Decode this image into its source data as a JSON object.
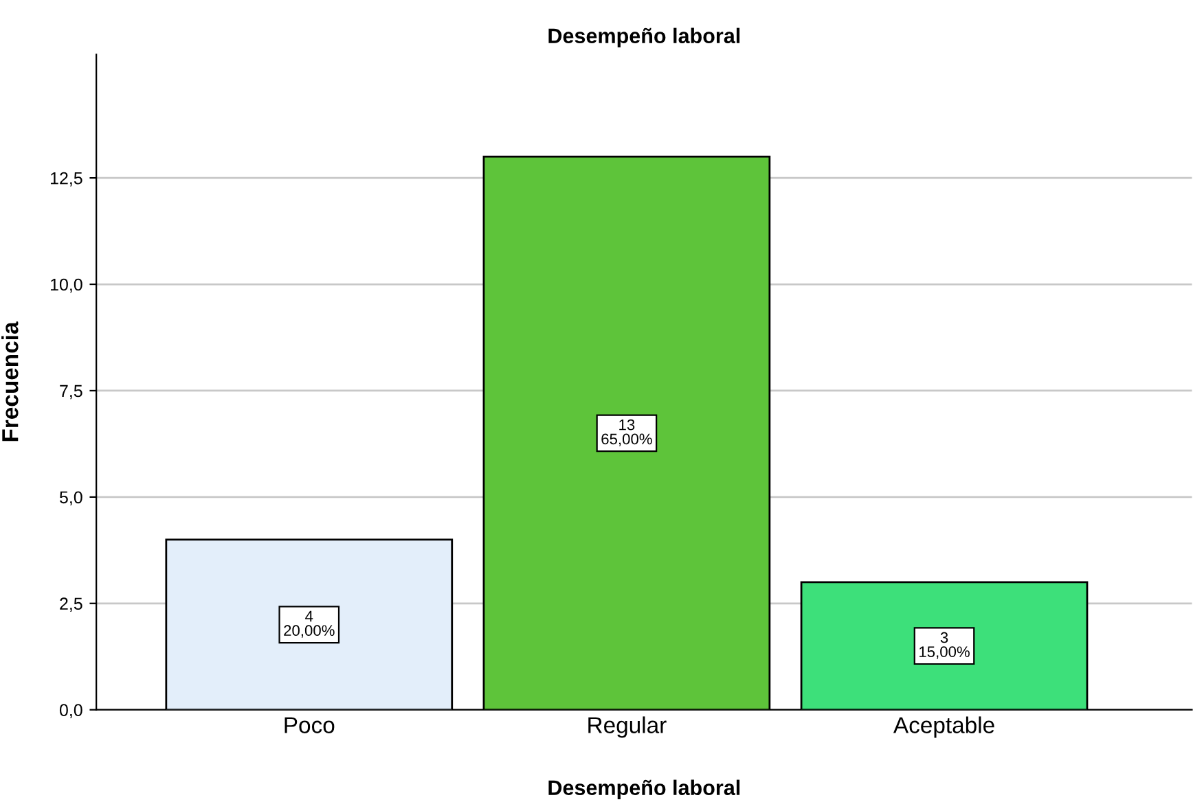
{
  "chart_data": {
    "type": "bar",
    "title": "Desempeño laboral",
    "xlabel": "Desempeño laboral",
    "ylabel": "Frecuencia",
    "categories": [
      "Poco",
      "Regular",
      "Aceptable"
    ],
    "values": [
      4,
      13,
      3
    ],
    "colors": [
      "#e3eefa",
      "#5ec43a",
      "#3de07a"
    ],
    "value_labels": [
      "4\n20,00%",
      "13\n65,00%",
      "3\n15,00%"
    ],
    "ylim": [
      0,
      15.4
    ],
    "yticks": [
      {
        "value": 0,
        "label": "0,0"
      },
      {
        "value": 2.5,
        "label": "2,5"
      },
      {
        "value": 5,
        "label": "5,0"
      },
      {
        "value": 7.5,
        "label": "7,5"
      },
      {
        "value": 10,
        "label": "10,0"
      },
      {
        "value": 12.5,
        "label": "12,5"
      }
    ],
    "grid": "y",
    "legend": false
  }
}
